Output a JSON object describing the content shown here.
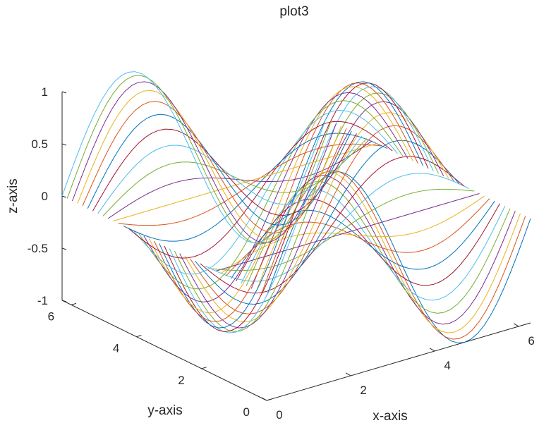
{
  "chart_data": {
    "type": "line",
    "plot_kind": "plot3",
    "title": "plot3",
    "xlabel": "x-axis",
    "ylabel": "y-axis",
    "zlabel": "z-axis",
    "function": "z = sin(x) * cos(y)",
    "x_range": [
      0,
      6.283
    ],
    "y_range": [
      0,
      6.283
    ],
    "z_range": [
      -1,
      1
    ],
    "x_ticks": [
      "0",
      "2",
      "4",
      "6"
    ],
    "y_ticks": [
      "0",
      "2",
      "4",
      "6"
    ],
    "z_ticks": [
      "-1",
      "-0.5",
      "0",
      "0.5",
      "1"
    ],
    "x_tick_values": [
      0,
      2,
      4,
      6
    ],
    "y_tick_values": [
      0,
      2,
      4,
      6
    ],
    "z_tick_values": [
      -1,
      -0.5,
      0,
      0.5,
      1
    ],
    "series_count": 41,
    "points_per_series": 41,
    "grid": false,
    "colors": [
      "#0072BD",
      "#D95319",
      "#EDB120",
      "#7E2F8E",
      "#77AC30",
      "#4DBEEE",
      "#A2142F"
    ]
  }
}
